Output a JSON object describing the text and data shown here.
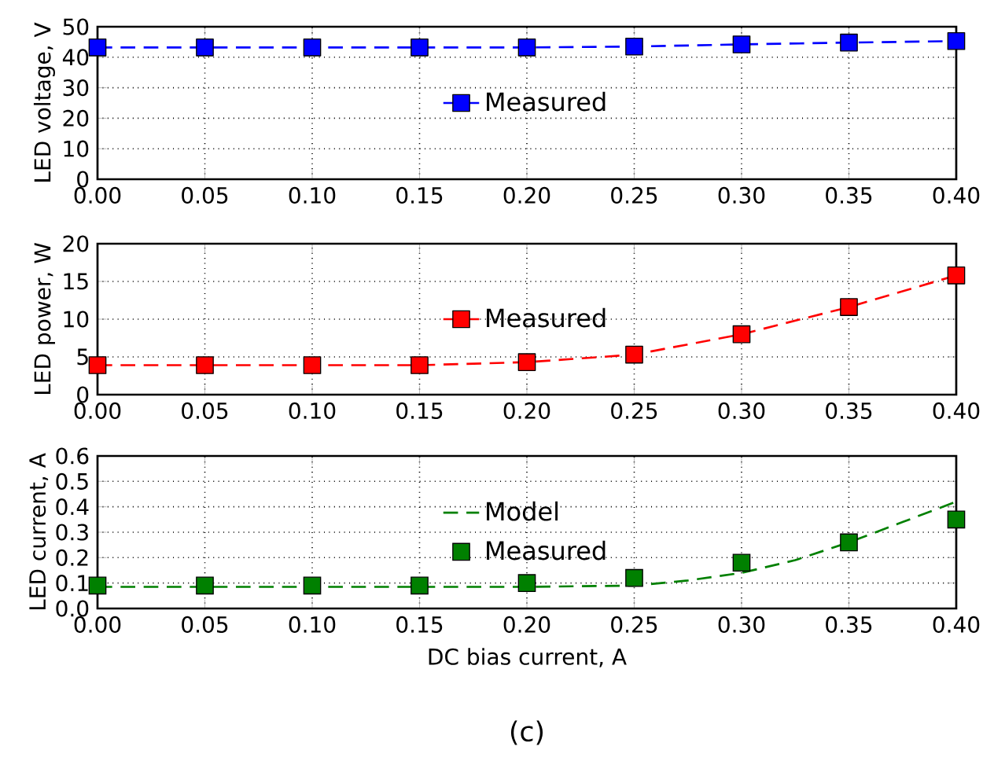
{
  "chart_data": [
    {
      "type": "line",
      "ylabel": "LED voltage, V",
      "x": [
        0,
        0.05,
        0.1,
        0.15,
        0.2,
        0.25,
        0.3,
        0.35,
        0.4
      ],
      "series": [
        {
          "name": "Measured",
          "color": "#0000ff",
          "marker": "square",
          "line_style": "dashed",
          "values": [
            43.2,
            43.2,
            43.2,
            43.2,
            43.2,
            43.5,
            44.2,
            44.8,
            45.3
          ]
        }
      ],
      "xlim": [
        0,
        0.4
      ],
      "ylim": [
        0,
        50
      ],
      "xticks": [
        {
          "value": 0,
          "label": "0.00"
        },
        {
          "value": 0.05,
          "label": "0.05"
        },
        {
          "value": 0.1,
          "label": "0.10"
        },
        {
          "value": 0.15,
          "label": "0.15"
        },
        {
          "value": 0.2,
          "label": "0.20"
        },
        {
          "value": 0.25,
          "label": "0.25"
        },
        {
          "value": 0.3,
          "label": "0.30"
        },
        {
          "value": 0.35,
          "label": "0.35"
        },
        {
          "value": 0.4,
          "label": "0.40"
        }
      ],
      "yticks": [
        0,
        10,
        20,
        30,
        40,
        50
      ],
      "grid": true,
      "legend": "center"
    },
    {
      "type": "line",
      "ylabel": "LED power, W",
      "x": [
        0,
        0.05,
        0.1,
        0.15,
        0.2,
        0.25,
        0.3,
        0.35,
        0.4
      ],
      "series": [
        {
          "name": "Measured",
          "color": "#ff0000",
          "marker": "square",
          "line_style": "dashed",
          "values": [
            3.9,
            3.9,
            3.9,
            3.9,
            4.3,
            5.3,
            8.0,
            11.6,
            15.8
          ]
        }
      ],
      "xlim": [
        0,
        0.4
      ],
      "ylim": [
        0,
        20
      ],
      "xticks": [
        {
          "value": 0,
          "label": "0.00"
        },
        {
          "value": 0.05,
          "label": "0.05"
        },
        {
          "value": 0.1,
          "label": "0.10"
        },
        {
          "value": 0.15,
          "label": "0.15"
        },
        {
          "value": 0.2,
          "label": "0.20"
        },
        {
          "value": 0.25,
          "label": "0.25"
        },
        {
          "value": 0.3,
          "label": "0.30"
        },
        {
          "value": 0.35,
          "label": "0.35"
        },
        {
          "value": 0.4,
          "label": "0.40"
        }
      ],
      "yticks": [
        0,
        5,
        10,
        15,
        20
      ],
      "grid": true,
      "legend": "center"
    },
    {
      "type": "line",
      "ylabel": "LED current, A",
      "xlabel": "DC bias current, A",
      "x": [
        0,
        0.05,
        0.1,
        0.15,
        0.2,
        0.25,
        0.3,
        0.35,
        0.4
      ],
      "series": [
        {
          "name": "Model",
          "type": "line",
          "color": "#008000",
          "marker": "none",
          "line_style": "dashed",
          "x": [
            0,
            0.05,
            0.1,
            0.15,
            0.2,
            0.25,
            0.275,
            0.3,
            0.325,
            0.35,
            0.375,
            0.4
          ],
          "values": [
            0.085,
            0.085,
            0.085,
            0.085,
            0.085,
            0.09,
            0.11,
            0.14,
            0.19,
            0.26,
            0.34,
            0.42
          ]
        },
        {
          "name": "Measured",
          "type": "scatter",
          "color": "#008000",
          "marker": "square",
          "values": [
            0.09,
            0.09,
            0.09,
            0.09,
            0.1,
            0.12,
            0.18,
            0.26,
            0.35
          ]
        }
      ],
      "xlim": [
        0,
        0.4
      ],
      "ylim": [
        0,
        0.6
      ],
      "xticks": [
        {
          "value": 0,
          "label": "0.00"
        },
        {
          "value": 0.05,
          "label": "0.05"
        },
        {
          "value": 0.1,
          "label": "0.10"
        },
        {
          "value": 0.15,
          "label": "0.15"
        },
        {
          "value": 0.2,
          "label": "0.20"
        },
        {
          "value": 0.25,
          "label": "0.25"
        },
        {
          "value": 0.3,
          "label": "0.30"
        },
        {
          "value": 0.35,
          "label": "0.35"
        },
        {
          "value": 0.4,
          "label": "0.40"
        }
      ],
      "yticks": [
        {
          "value": 0,
          "label": "0.0"
        },
        {
          "value": 0.1,
          "label": "0.1"
        },
        {
          "value": 0.2,
          "label": "0.2"
        },
        {
          "value": 0.3,
          "label": "0.3"
        },
        {
          "value": 0.4,
          "label": "0.4"
        },
        {
          "value": 0.5,
          "label": "0.5"
        },
        {
          "value": 0.6,
          "label": "0.6"
        }
      ],
      "grid": true,
      "legend": "center",
      "annotations": [
        "(c)"
      ]
    }
  ]
}
